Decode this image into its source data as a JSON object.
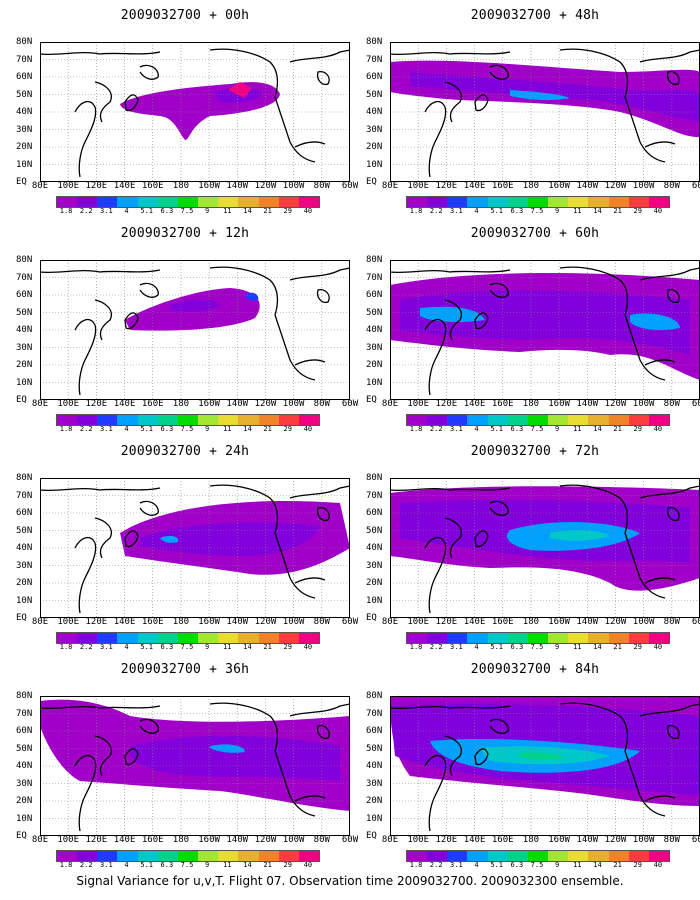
{
  "panels": [
    {
      "title": "2009032700 + 00h",
      "lead": "00h"
    },
    {
      "title": "2009032700 + 48h",
      "lead": "48h"
    },
    {
      "title": "2009032700 + 12h",
      "lead": "12h"
    },
    {
      "title": "2009032700 + 60h",
      "lead": "60h"
    },
    {
      "title": "2009032700 + 24h",
      "lead": "24h"
    },
    {
      "title": "2009032700 + 72h",
      "lead": "72h"
    },
    {
      "title": "2009032700 + 36h",
      "lead": "36h"
    },
    {
      "title": "2009032700 + 84h",
      "lead": "84h"
    }
  ],
  "x_ticks": [
    "80E",
    "100E",
    "120E",
    "140E",
    "160E",
    "180",
    "160W",
    "140W",
    "120W",
    "100W",
    "80W",
    "60W"
  ],
  "y_ticks": [
    "80N",
    "70N",
    "60N",
    "50N",
    "40N",
    "30N",
    "20N",
    "10N",
    "EQ"
  ],
  "colorbar": {
    "levels": [
      "1.8",
      "2.2",
      "3.1",
      "4",
      "5.1",
      "6.3",
      "7.5",
      "9",
      "11",
      "14",
      "21",
      "29",
      "40"
    ],
    "colors": [
      "#a000c8",
      "#8200dc",
      "#1e3cff",
      "#00a0ff",
      "#00c8c8",
      "#00d28c",
      "#00dc00",
      "#a0e632",
      "#e6dc32",
      "#e6af2d",
      "#f08228",
      "#fa3c3c",
      "#f00082"
    ]
  },
  "footer": "Signal Variance for u,v,T. Flight 07. Observation time 2009032700. 2009032300 ensemble."
}
